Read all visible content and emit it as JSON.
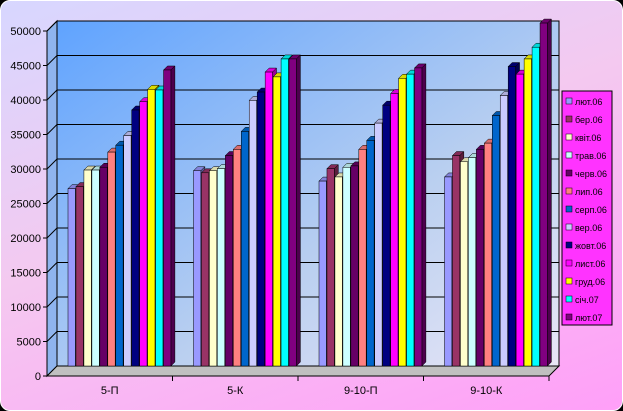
{
  "chart_data": {
    "type": "bar",
    "categories": [
      "5-П",
      "5-К",
      "9-10-П",
      "9-10-К"
    ],
    "ylim": [
      0,
      50000
    ],
    "yticks": [
      0,
      5000,
      10000,
      15000,
      20000,
      25000,
      30000,
      35000,
      40000,
      45000,
      50000
    ],
    "grid": true,
    "legend_position": "right",
    "series": [
      {
        "name": "лют.06",
        "color": "#9999ff",
        "values": [
          25700,
          28300,
          26800,
          27400
        ]
      },
      {
        "name": "бер.06",
        "color": "#993366",
        "values": [
          26000,
          28000,
          28600,
          30500
        ]
      },
      {
        "name": "квіт.06",
        "color": "#ffffcc",
        "values": [
          28400,
          28300,
          27400,
          29600
        ]
      },
      {
        "name": "трав.06",
        "color": "#ccffff",
        "values": [
          28400,
          28600,
          28800,
          30200
        ]
      },
      {
        "name": "черв.06",
        "color": "#660066",
        "values": [
          28800,
          30500,
          29000,
          31400
        ]
      },
      {
        "name": "лип.06",
        "color": "#ff8080",
        "values": [
          31000,
          31400,
          31400,
          32300
        ]
      },
      {
        "name": "серп.06",
        "color": "#0066cc",
        "values": [
          32000,
          34000,
          32700,
          36300
        ]
      },
      {
        "name": "вер.06",
        "color": "#ccccff",
        "values": [
          33400,
          38500,
          35200,
          39200
        ]
      },
      {
        "name": "жовт.06",
        "color": "#000080",
        "values": [
          37100,
          39700,
          37800,
          43400
        ]
      },
      {
        "name": "лист.06",
        "color": "#ff00ff",
        "values": [
          38300,
          42600,
          39500,
          42300
        ]
      },
      {
        "name": "груд.06",
        "color": "#ffff00",
        "values": [
          40100,
          41900,
          41700,
          44500
        ]
      },
      {
        "name": "січ.07",
        "color": "#00ffff",
        "values": [
          40000,
          44500,
          42300,
          46200
        ]
      },
      {
        "name": "лют.07",
        "color": "#800080",
        "values": [
          42900,
          44500,
          43200,
          49700
        ]
      }
    ]
  }
}
